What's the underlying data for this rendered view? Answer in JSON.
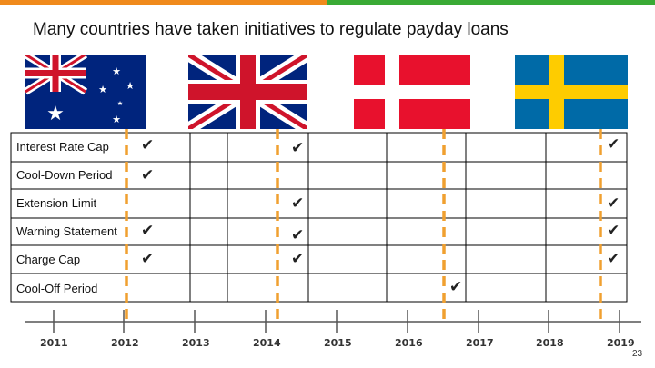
{
  "slide_title": "Many countries have taken initiatives to regulate payday loans",
  "flags": [
    {
      "country": "Australia"
    },
    {
      "country": "United Kingdom"
    },
    {
      "country": "Denmark"
    },
    {
      "country": "Sweden"
    }
  ],
  "rows": [
    {
      "label": "Interest Rate Cap"
    },
    {
      "label": "Cool-Down Period"
    },
    {
      "label": "Extension Limit"
    },
    {
      "label": "Warning Statement"
    },
    {
      "label": "Charge Cap"
    },
    {
      "label": "Cool-Off Period"
    }
  ],
  "check_symbol": "✔",
  "timeline_years": [
    "2011",
    "2012",
    "2013",
    "2014",
    "2015",
    "2016",
    "2017",
    "2018",
    "2019"
  ],
  "page_number": "23",
  "colors": {
    "accent_orange": "#f08a1c",
    "accent_green": "#3aaa35",
    "dash_orange": "#f0a030"
  }
}
